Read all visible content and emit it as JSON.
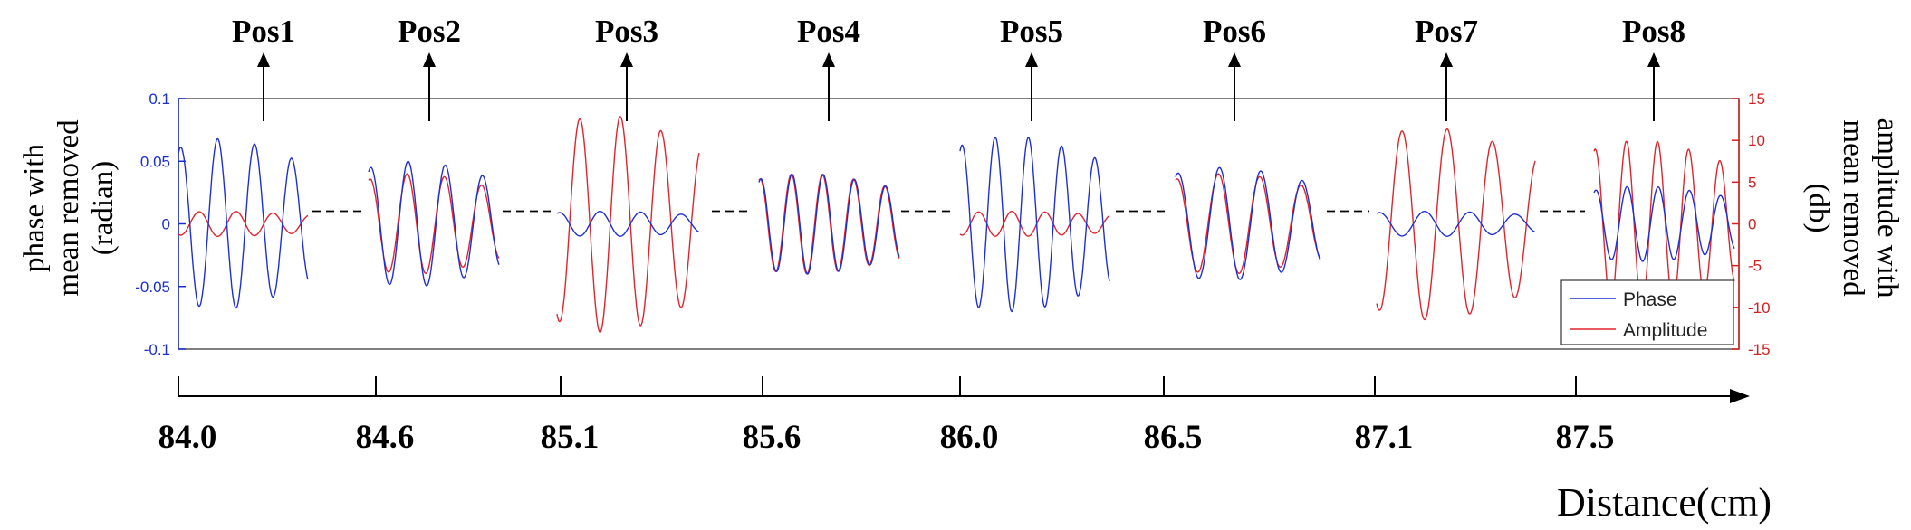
{
  "chart_data": {
    "type": "line",
    "title": "",
    "xlabel": "Distance(cm)",
    "ylabel_left": "phase with mean removed (radian)",
    "ylabel_right": "amplitude with mean removed (db)",
    "ylim_left": [
      -0.1,
      0.1
    ],
    "ylim_right": [
      -15,
      15
    ],
    "yticks_left": [
      "0.1",
      "0.05",
      "0",
      "-0.05",
      "-0.1"
    ],
    "yticks_right": [
      "15",
      "10",
      "5",
      "0",
      "-5",
      "-10",
      "-15"
    ],
    "distance_ticks": [
      "84.0",
      "84.6",
      "85.1",
      "85.6",
      "86.0",
      "86.5",
      "87.1",
      "87.5"
    ],
    "positions": [
      "Pos1",
      "Pos2",
      "Pos3",
      "Pos4",
      "Pos5",
      "Pos6",
      "Pos7",
      "Pos8"
    ],
    "legend": {
      "placement": "bottom-right",
      "entries": [
        "Phase",
        "Amplitude"
      ]
    },
    "colors": {
      "phase": "#1f2fd6",
      "amplitude": "#e0242c",
      "axis_left": "#1a2fd0",
      "axis_right": "#d22020",
      "frame": "#555555",
      "text": "#000000"
    },
    "segments": [
      {
        "position": "Pos1",
        "phase_peak": 0.068,
        "amplitude_peak": 1.5,
        "cycles": 3.5
      },
      {
        "position": "Pos2",
        "phase_peak": 0.05,
        "amplitude_peak": 6,
        "cycles": 3.5
      },
      {
        "position": "Pos3",
        "phase_peak": 0.01,
        "amplitude_peak": 13,
        "cycles": 3.5
      },
      {
        "position": "Pos4",
        "phase_peak": 0.04,
        "amplitude_peak": 6,
        "cycles": 4.5
      },
      {
        "position": "Pos5",
        "phase_peak": 0.07,
        "amplitude_peak": 1.5,
        "cycles": 4.5
      },
      {
        "position": "Pos6",
        "phase_peak": 0.045,
        "amplitude_peak": 6,
        "cycles": 3.5
      },
      {
        "position": "Pos7",
        "phase_peak": 0.01,
        "amplitude_peak": 11.5,
        "cycles": 3.5
      },
      {
        "position": "Pos8",
        "phase_peak": 0.03,
        "amplitude_peak": 10,
        "cycles": 4.5
      }
    ]
  }
}
